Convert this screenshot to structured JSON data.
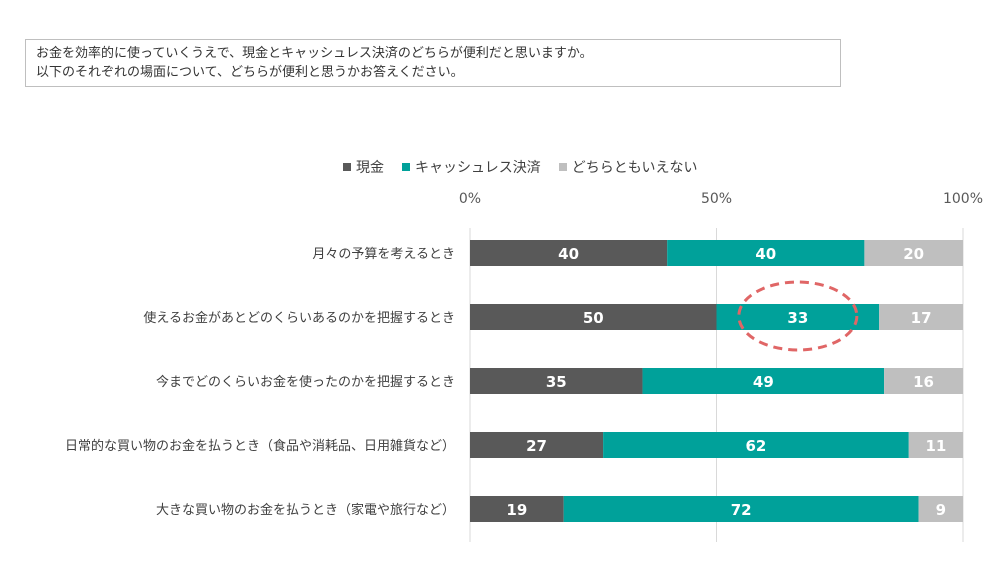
{
  "question": {
    "line1": "お金を効率的に使っていくうえで、現金とキャッシュレス決済のどちらが便利だと思いますか。",
    "line2": "以下のそれぞれの場面について、どちらが便利と思うかお答えください。"
  },
  "colors": {
    "cash": "#595959",
    "cashless": "#00a19a",
    "neither": "#bfbfbf",
    "highlight": "#e06666"
  },
  "chart_data": {
    "type": "bar",
    "orientation": "horizontal",
    "stacked": true,
    "xlim": [
      0,
      100
    ],
    "tick_labels": [
      "0%",
      "50%",
      "100%"
    ],
    "tick_values": [
      0,
      50,
      100
    ],
    "legend_position": "top",
    "categories": [
      "月々の予算を考えるとき",
      "使えるお金があとどのくらいあるのかを把握するとき",
      "今までどのくらいお金を使ったのかを把握するとき",
      "日常的な買い物のお金を払うとき（食品や消耗品、日用雑貨など）",
      "大きな買い物のお金を払うとき（家電や旅行など）"
    ],
    "series": [
      {
        "name": "現金",
        "values": [
          40,
          50,
          35,
          27,
          19
        ]
      },
      {
        "name": "キャッシュレス決済",
        "values": [
          40,
          33,
          49,
          62,
          72
        ]
      },
      {
        "name": "どちらともいえない",
        "values": [
          20,
          17,
          16,
          11,
          9
        ]
      }
    ],
    "highlighted": {
      "series": 1,
      "category": 1
    }
  }
}
